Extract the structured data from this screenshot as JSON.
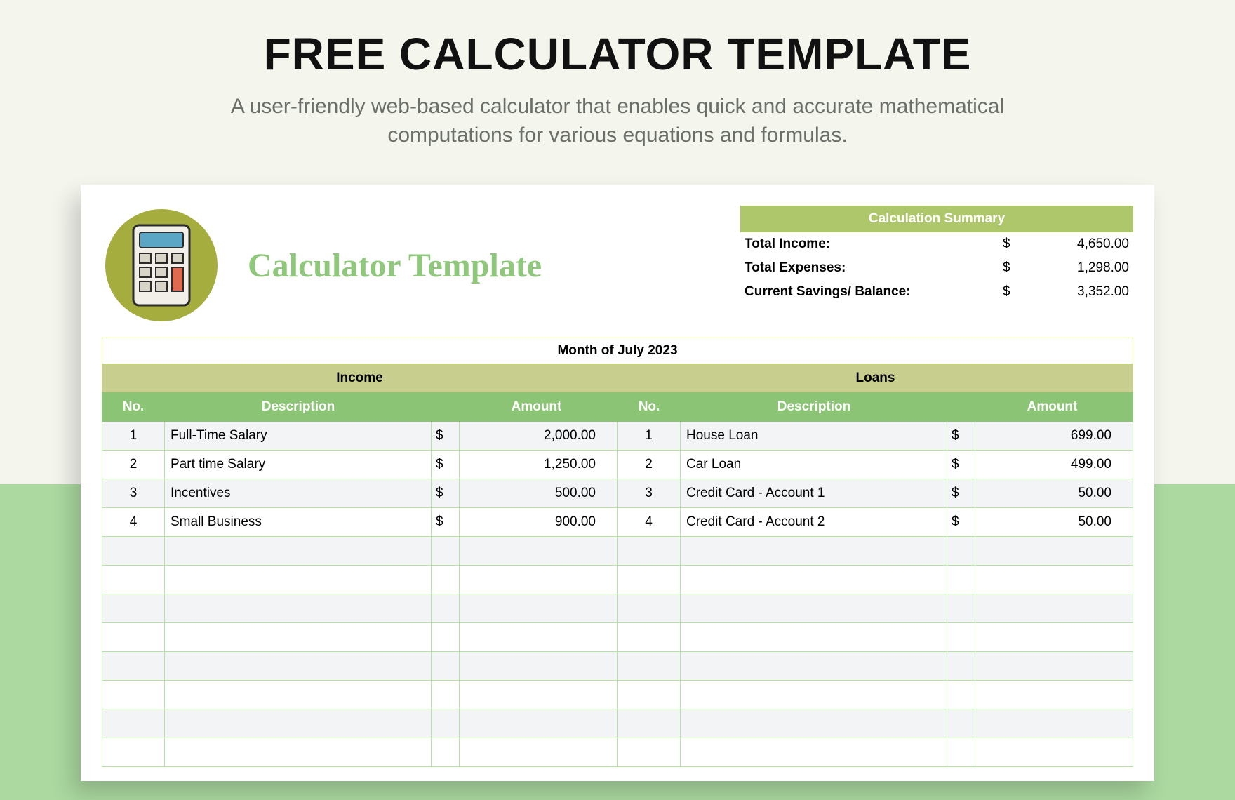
{
  "page": {
    "title": "FREE CALCULATOR TEMPLATE",
    "subtitle": "A user-friendly web-based calculator that enables quick and accurate mathematical computations for various equations and formulas."
  },
  "colors": {
    "bg_top": "#f4f5ed",
    "bg_bottom": "#abd9a0",
    "card_bg": "#ffffff",
    "summary_head": "#aec76a",
    "section_bar": "#c8ce8e",
    "col_head": "#8bc474",
    "row_alt": "#f2f4f6",
    "grid_line": "#b7e0a8",
    "title_green": "#8fc77b",
    "logo_circle": "#a5ad3f"
  },
  "template": {
    "title": "Calculator Template",
    "month_label": "Month of July 2023"
  },
  "summary": {
    "header": "Calculation Summary",
    "rows": [
      {
        "label": "Total Income:",
        "currency": "$",
        "value": "4,650.00"
      },
      {
        "label": "Total Expenses:",
        "currency": "$",
        "value": "1,298.00"
      },
      {
        "label": "Current Savings/ Balance:",
        "currency": "$",
        "value": "3,352.00"
      }
    ]
  },
  "sections": {
    "left": "Income",
    "right": "Loans"
  },
  "columns": {
    "no": "No.",
    "desc": "Description",
    "amt": "Amount"
  },
  "income": [
    {
      "no": "1",
      "desc": "Full-Time Salary",
      "cur": "$",
      "amt": "2,000.00"
    },
    {
      "no": "2",
      "desc": "Part time Salary",
      "cur": "$",
      "amt": "1,250.00"
    },
    {
      "no": "3",
      "desc": "Incentives",
      "cur": "$",
      "amt": "500.00"
    },
    {
      "no": "4",
      "desc": "Small Business",
      "cur": "$",
      "amt": "900.00"
    }
  ],
  "loans": [
    {
      "no": "1",
      "desc": "House Loan",
      "cur": "$",
      "amt": "699.00"
    },
    {
      "no": "2",
      "desc": "Car Loan",
      "cur": "$",
      "amt": "499.00"
    },
    {
      "no": "3",
      "desc": "Credit Card - Account 1",
      "cur": "$",
      "amt": "50.00"
    },
    {
      "no": "4",
      "desc": "Credit Card - Account 2",
      "cur": "$",
      "amt": "50.00"
    }
  ],
  "empty_rows": 8
}
